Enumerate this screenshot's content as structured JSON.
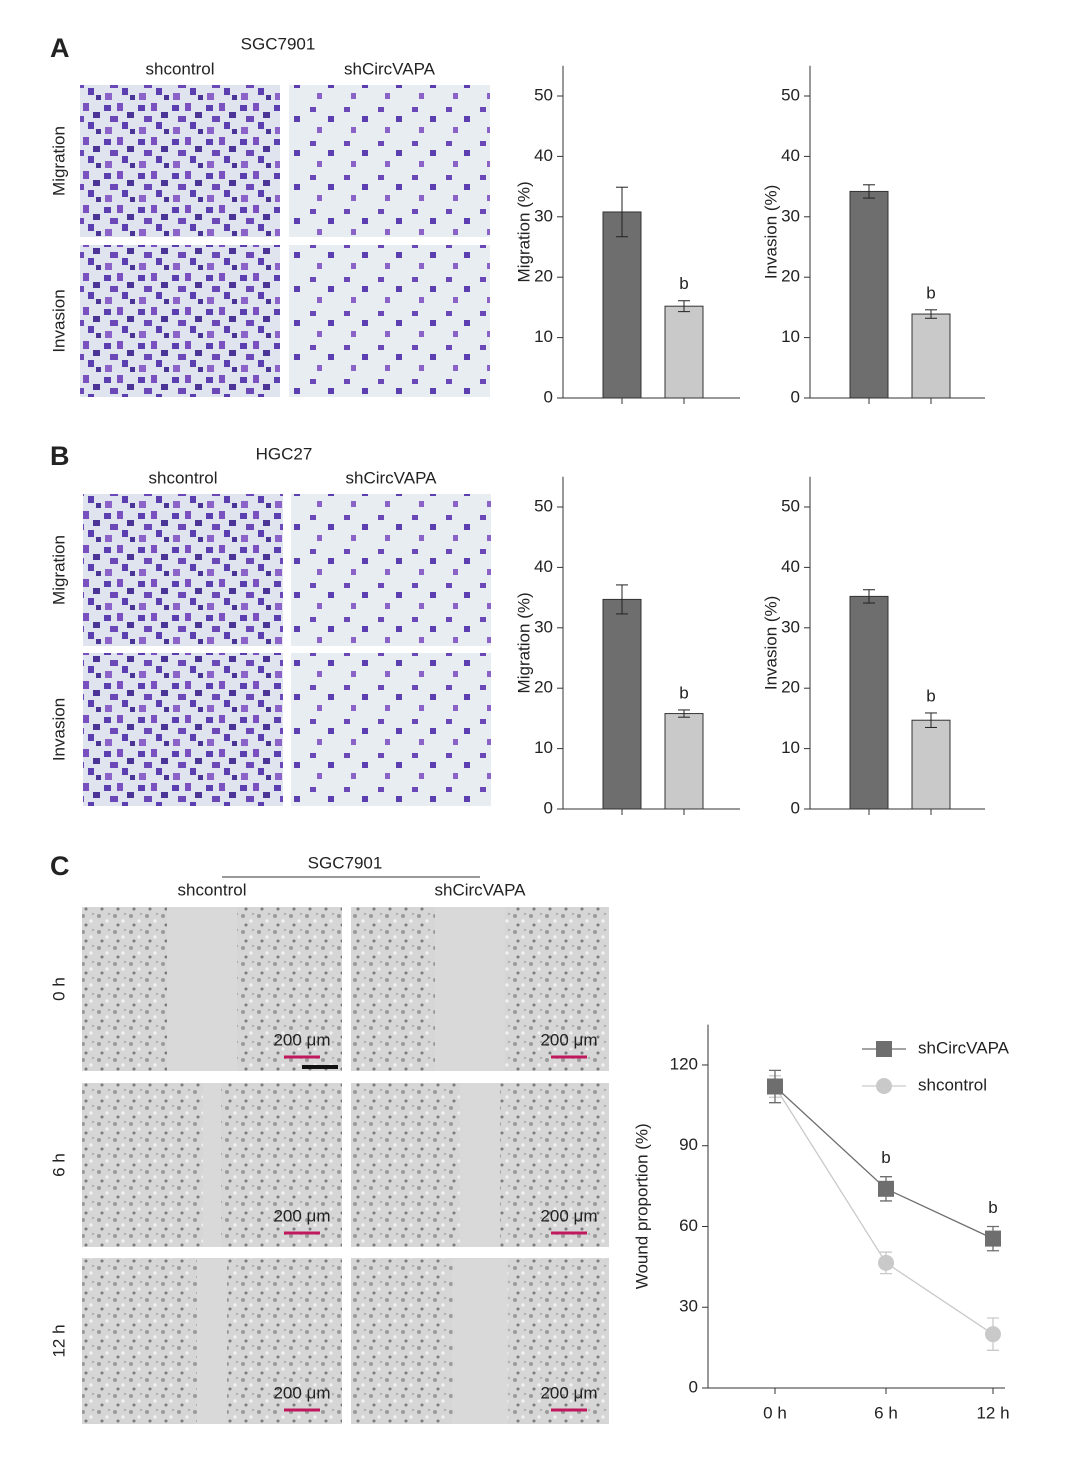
{
  "figure": {
    "panels": [
      {
        "label": "A",
        "cell_line": "SGC7901",
        "columns": [
          "shcontrol",
          "shCircVAPA"
        ],
        "rows": [
          "Migration",
          "Invasion"
        ]
      },
      {
        "label": "B",
        "cell_line": "HGC27",
        "columns": [
          "shcontrol",
          "shCircVAPA"
        ],
        "rows": [
          "Migration",
          "Invasion"
        ]
      },
      {
        "label": "C",
        "cell_line": "SGC7901",
        "columns": [
          "shcontrol",
          "shCircVAPA"
        ],
        "rows": [
          "0 h",
          "6 h",
          "12 h"
        ],
        "scale_bar": "200 μm"
      }
    ]
  },
  "chart_data": [
    {
      "type": "bar",
      "categories": [
        null,
        null
      ],
      "values": [
        30.8,
        15.2
      ],
      "errors": [
        4.1,
        0.9
      ],
      "colors": [
        "#6e6e6e",
        "#c9c9c9"
      ],
      "significance": [
        null,
        "b"
      ],
      "ylabel": "Migration (%)",
      "ylim": [
        0,
        55
      ],
      "yticks": [
        0,
        10,
        20,
        30,
        40,
        50
      ]
    },
    {
      "type": "bar",
      "categories": [
        null,
        null
      ],
      "values": [
        34.2,
        13.9
      ],
      "errors": [
        1.1,
        0.7
      ],
      "colors": [
        "#6e6e6e",
        "#c9c9c9"
      ],
      "significance": [
        null,
        "b"
      ],
      "ylabel": "Invasion (%)",
      "ylim": [
        0,
        55
      ],
      "yticks": [
        0,
        10,
        20,
        30,
        40,
        50
      ]
    },
    {
      "type": "bar",
      "categories": [
        null,
        null
      ],
      "values": [
        34.7,
        15.8
      ],
      "errors": [
        2.4,
        0.6
      ],
      "colors": [
        "#6e6e6e",
        "#c9c9c9"
      ],
      "significance": [
        null,
        "b"
      ],
      "ylabel": "Migration (%)",
      "ylim": [
        0,
        55
      ],
      "yticks": [
        0,
        10,
        20,
        30,
        40,
        50
      ]
    },
    {
      "type": "bar",
      "categories": [
        null,
        null
      ],
      "values": [
        35.2,
        14.7
      ],
      "errors": [
        1.1,
        1.2
      ],
      "colors": [
        "#6e6e6e",
        "#c9c9c9"
      ],
      "significance": [
        null,
        "b"
      ],
      "ylabel": "Invasion (%)",
      "ylim": [
        0,
        55
      ],
      "yticks": [
        0,
        10,
        20,
        30,
        40,
        50
      ]
    },
    {
      "type": "line",
      "categories": [
        "0 h",
        "6 h",
        "12 h"
      ],
      "ylabel": "Wound proportion (%)",
      "ylim": [
        0,
        135
      ],
      "yticks": [
        0,
        30,
        60,
        90,
        120
      ],
      "legend": "upper right",
      "series": [
        {
          "name": "shCircVAPA",
          "color": "#6e6e6e",
          "marker": "square",
          "values": [
            112,
            74,
            55.5
          ],
          "errors": [
            6,
            4.5,
            4.5
          ],
          "significance": [
            null,
            "b",
            "b"
          ]
        },
        {
          "name": "shcontrol",
          "color": "#c9c9c9",
          "marker": "circle",
          "values": [
            112,
            46.5,
            20
          ],
          "errors": [
            4,
            4,
            6
          ]
        }
      ]
    }
  ]
}
